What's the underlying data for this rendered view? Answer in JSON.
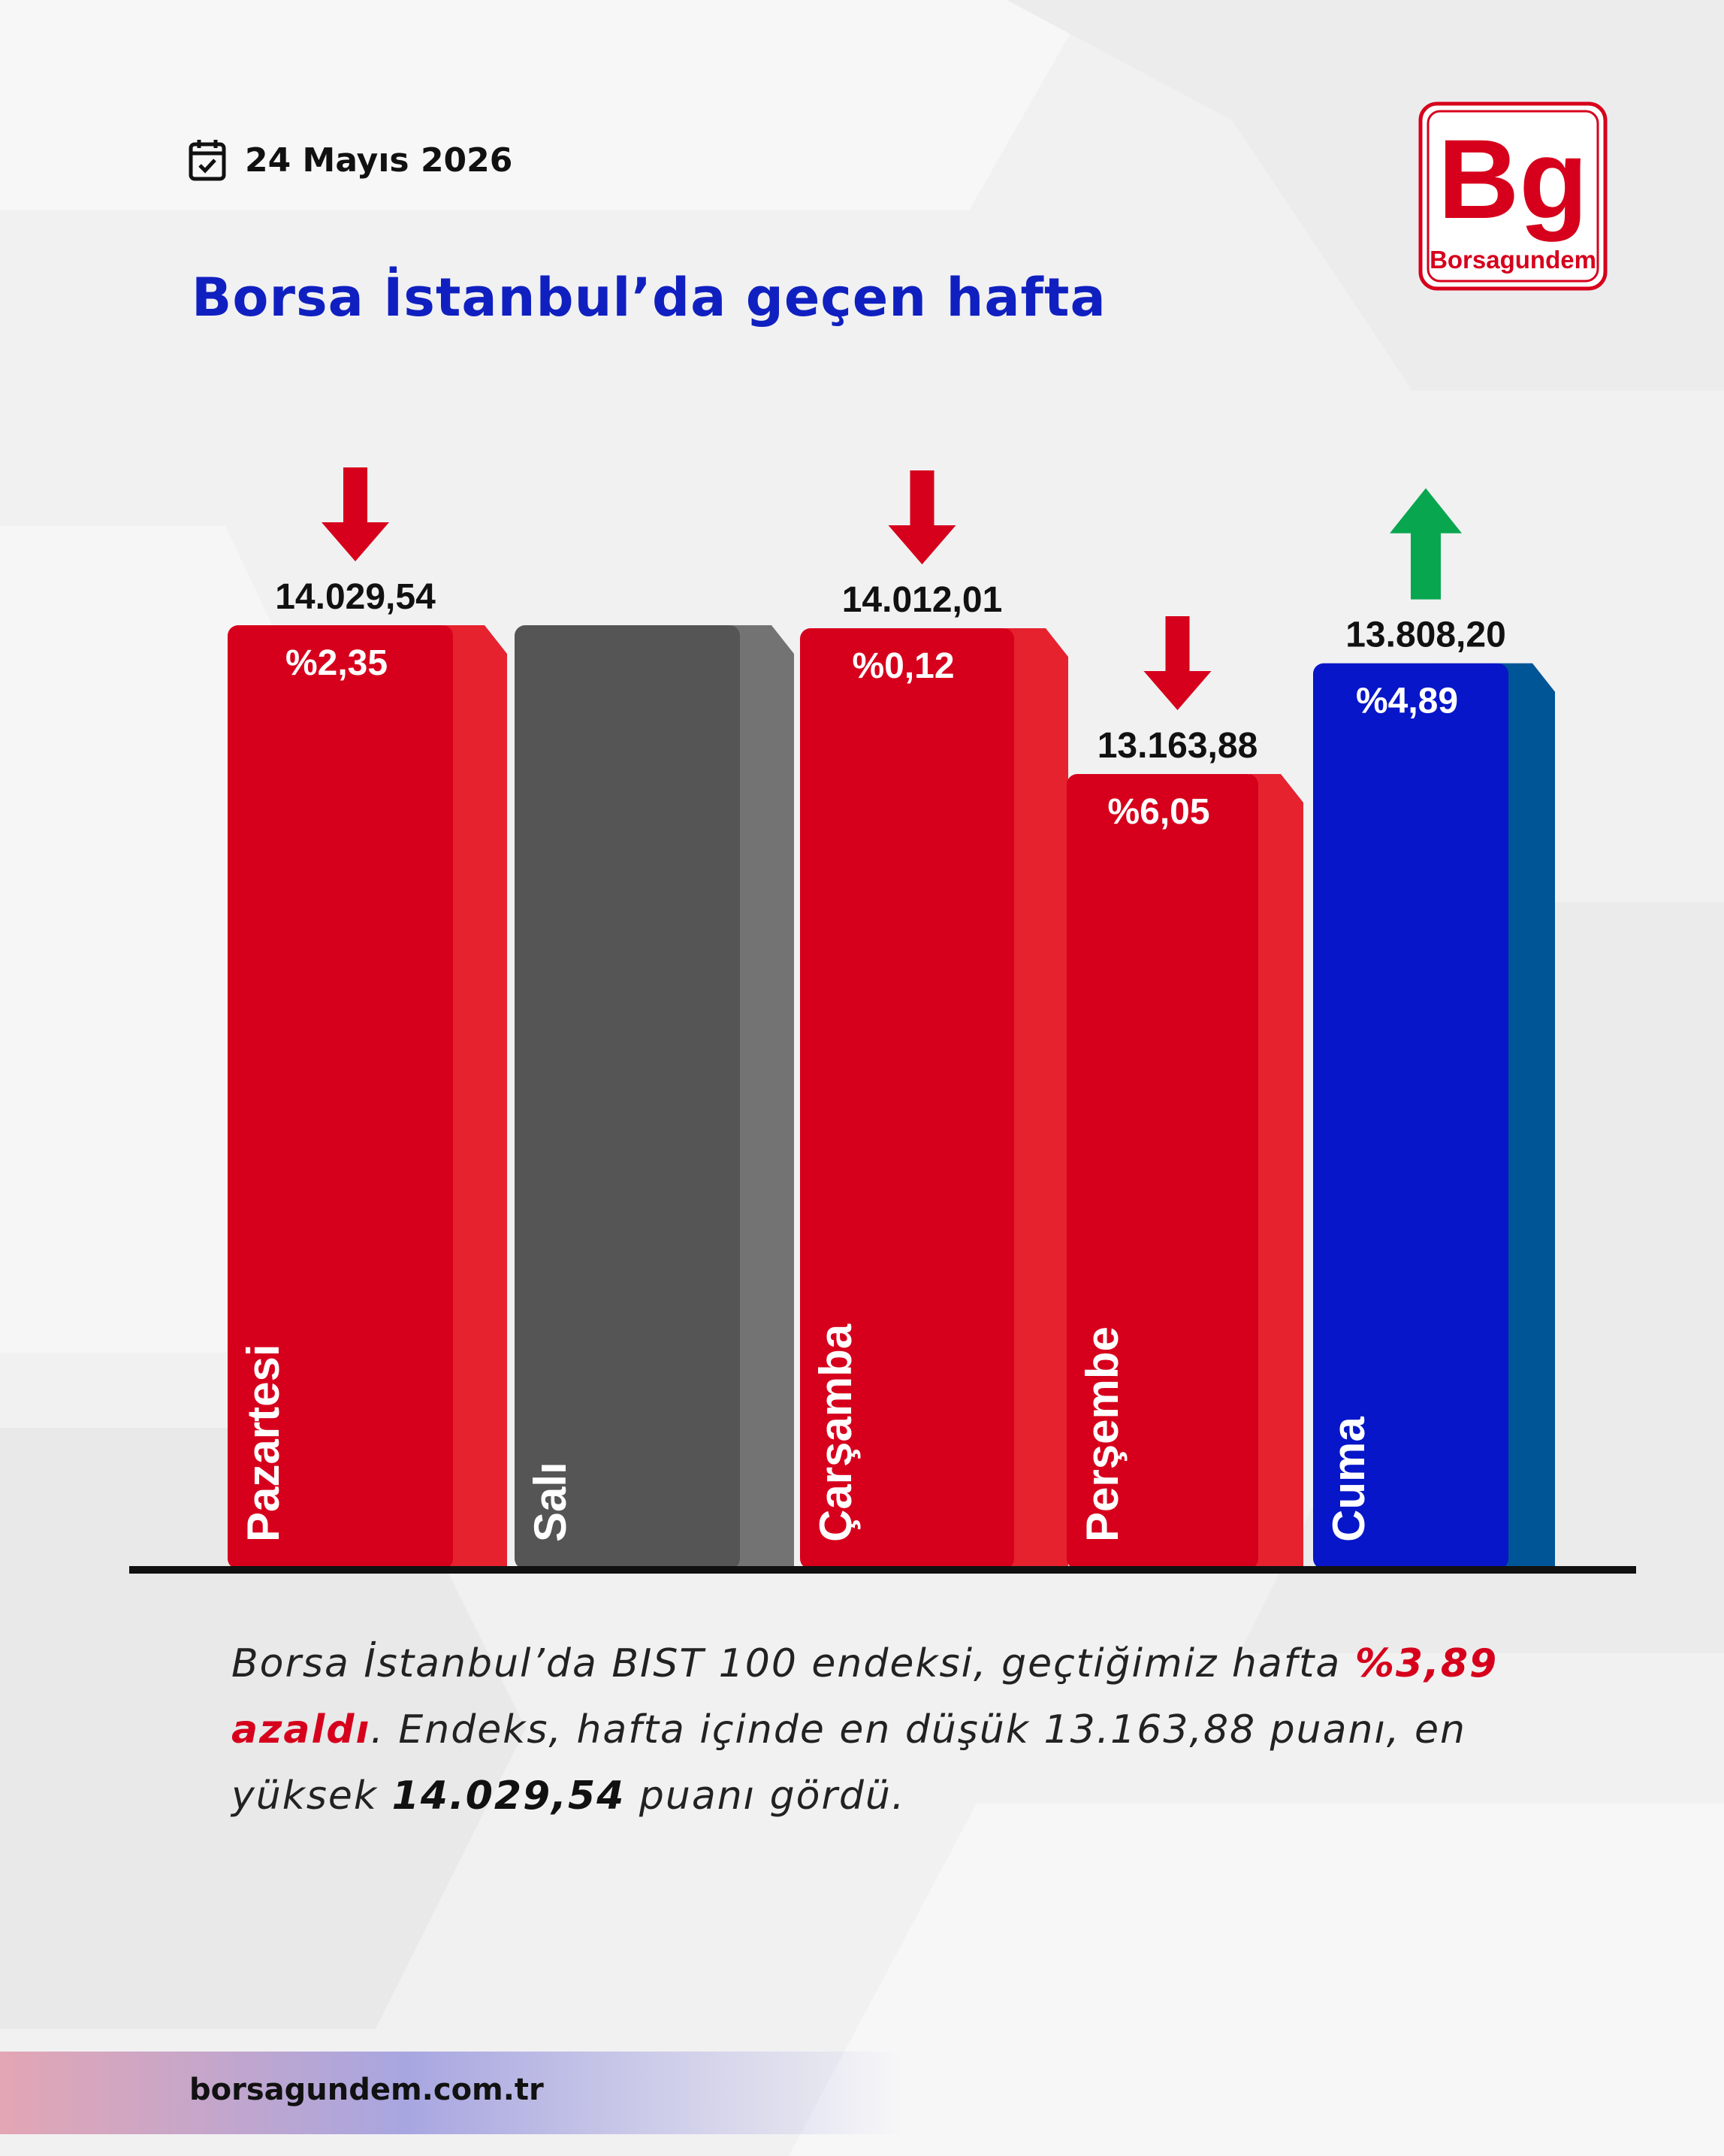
{
  "header": {
    "date": "24 Mayıs 2026",
    "title": "Borsa İstanbul’da geçen hafta"
  },
  "logo": {
    "mark": "Bg",
    "name": "Borsagundem",
    "color": "#d6001c"
  },
  "chart_data": {
    "type": "bar",
    "categories": [
      "Pazartesi",
      "Salı",
      "Çarşamba",
      "Perşembe",
      "Cuma"
    ],
    "values": [
      14029.54,
      null,
      14012.01,
      13163.88,
      13808.2
    ],
    "value_labels": [
      "14.029,54",
      "",
      "14.012,01",
      "13.163,88",
      "13.808,20"
    ],
    "change_labels": [
      "%2,35",
      "",
      "%0,12",
      "%6,05",
      "%4,89"
    ],
    "direction": [
      "down",
      "none",
      "down",
      "down",
      "up"
    ],
    "colors": {
      "down": "#d6001c",
      "down_side": "#e5222e",
      "none": "#555555",
      "none_side": "#737373",
      "up": "#0716c8",
      "up_side": "#005596",
      "arrow_down": "#d6001c",
      "arrow_up": "#09a650"
    }
  },
  "summary": {
    "part1": "Borsa İstanbul’da BIST 100 endeksi, geçtiğimiz hafta ",
    "highlight": "%3,89 azaldı",
    "part2": ". Endeks, hafta içinde en düşük 13.163,88 puanı, en yüksek ",
    "bold_value": "14.029,54",
    "part3": " puanı gördü."
  },
  "footer": {
    "url": "borsagundem.com.tr"
  }
}
